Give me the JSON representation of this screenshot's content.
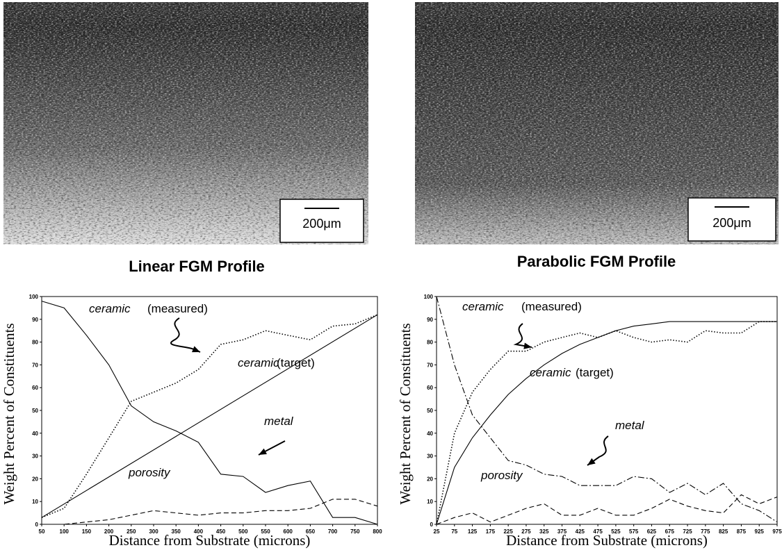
{
  "micrographs": [
    {
      "scale_label": "200μm"
    },
    {
      "scale_label": "200μm"
    }
  ],
  "chart_data": [
    {
      "type": "line",
      "title": "Linear FGM Profile",
      "x_label": "Distance from Substrate (microns)",
      "y_label": "Weight Percent of Constituents",
      "xlim": [
        50,
        800
      ],
      "xticks": [
        50,
        100,
        150,
        200,
        250,
        300,
        350,
        400,
        450,
        500,
        550,
        600,
        650,
        700,
        750,
        800
      ],
      "ylim": [
        0,
        100
      ],
      "yticks": [
        0,
        10,
        20,
        30,
        40,
        50,
        60,
        70,
        80,
        90,
        100
      ],
      "annotations": [
        "ceramic",
        "(measured)",
        "ceramic",
        "(target)",
        "metal",
        "porosity"
      ],
      "series": [
        {
          "style": "dotted",
          "color": "#000000",
          "x": [
            50,
            100,
            150,
            200,
            250,
            300,
            350,
            400,
            450,
            500,
            550,
            600,
            650,
            700,
            750,
            800
          ],
          "values": [
            3,
            7,
            22,
            38,
            54,
            58,
            62,
            68,
            79,
            81,
            85,
            83,
            81,
            87,
            88,
            92
          ]
        },
        {
          "style": "solid",
          "color": "#000000",
          "x": [
            50,
            800
          ],
          "values": [
            3,
            92
          ]
        },
        {
          "style": "solid",
          "color": "#000000",
          "x": [
            50,
            100,
            150,
            200,
            250,
            300,
            350,
            400,
            450,
            500,
            550,
            600,
            650,
            700,
            750,
            800
          ],
          "values": [
            98,
            95,
            83,
            70,
            52,
            45,
            41,
            36,
            22,
            21,
            14,
            17,
            19,
            3,
            3,
            0
          ]
        },
        {
          "style": "dashed",
          "color": "#000000",
          "x": [
            50,
            100,
            150,
            200,
            250,
            300,
            350,
            400,
            450,
            500,
            550,
            600,
            650,
            700,
            750,
            800
          ],
          "values": [
            0,
            0,
            1,
            2,
            4,
            6,
            5,
            4,
            5,
            5,
            6,
            6,
            7,
            11,
            11,
            8
          ]
        }
      ]
    },
    {
      "type": "line",
      "title": "Parabolic FGM Profile",
      "x_label": "Distance from Substrate (microns)",
      "y_label": "Weight Percent of Constituents",
      "xlim": [
        25,
        975
      ],
      "xticks": [
        25,
        75,
        125,
        175,
        225,
        275,
        325,
        375,
        425,
        475,
        525,
        575,
        625,
        675,
        725,
        775,
        825,
        875,
        925,
        975
      ],
      "ylim": [
        0,
        100
      ],
      "yticks": [
        0,
        10,
        20,
        30,
        40,
        50,
        60,
        70,
        80,
        90,
        100
      ],
      "annotations": [
        "ceramic",
        "(measured)",
        "ceramic",
        "(target)",
        "metal",
        "porosity"
      ],
      "series": [
        {
          "style": "dotted",
          "color": "#000000",
          "x": [
            25,
            75,
            125,
            175,
            225,
            275,
            325,
            375,
            425,
            475,
            525,
            575,
            625,
            675,
            725,
            775,
            825,
            875,
            925,
            975
          ],
          "values": [
            0,
            40,
            58,
            68,
            76,
            76,
            80,
            82,
            84,
            82,
            85,
            82,
            80,
            81,
            80,
            85,
            84,
            84,
            89,
            89
          ]
        },
        {
          "style": "solid",
          "color": "#000000",
          "x": [
            25,
            75,
            125,
            175,
            225,
            275,
            325,
            375,
            425,
            475,
            525,
            575,
            625,
            675,
            725,
            775,
            825,
            875,
            925,
            975
          ],
          "values": [
            0,
            25,
            38,
            48,
            57,
            64,
            70,
            75,
            79,
            82,
            85,
            87,
            88,
            89,
            89,
            89,
            89,
            89,
            89,
            89
          ]
        },
        {
          "style": "dashdot",
          "color": "#000000",
          "x": [
            25,
            75,
            125,
            175,
            225,
            275,
            325,
            375,
            425,
            475,
            525,
            575,
            625,
            675,
            725,
            775,
            825,
            875,
            925,
            975
          ],
          "values": [
            100,
            70,
            48,
            38,
            28,
            26,
            22,
            21,
            17,
            17,
            17,
            21,
            20,
            14,
            18,
            13,
            18,
            9,
            6,
            1
          ]
        },
        {
          "style": "dashed",
          "color": "#000000",
          "x": [
            25,
            75,
            125,
            175,
            225,
            275,
            325,
            375,
            425,
            475,
            525,
            575,
            625,
            675,
            725,
            775,
            825,
            875,
            925,
            975
          ],
          "values": [
            0,
            3,
            5,
            1,
            4,
            7,
            9,
            4,
            4,
            7,
            4,
            4,
            7,
            11,
            8,
            6,
            5,
            13,
            9,
            12
          ]
        }
      ]
    }
  ]
}
